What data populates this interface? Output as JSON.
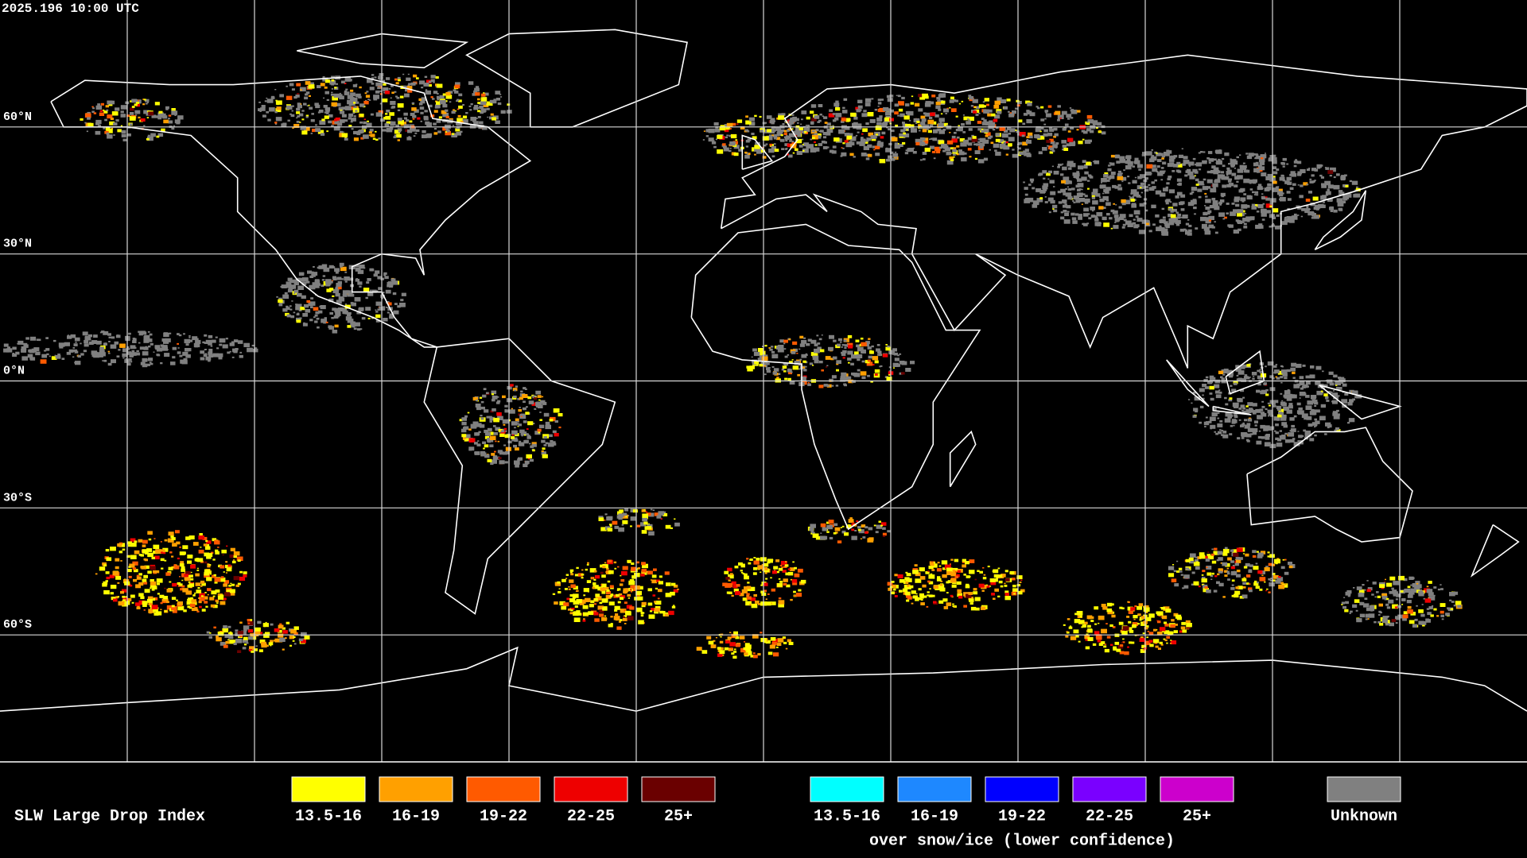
{
  "header": {
    "timestamp": "2025.196 10:00 UTC"
  },
  "map": {
    "latitude_labels": [
      "60°N",
      "30°N",
      "0°N",
      "30°S",
      "60°S"
    ]
  },
  "legend": {
    "title": "SLW Large Drop Index",
    "groups": [
      {
        "items": [
          {
            "label": "13.5-16",
            "color": "#ffff00"
          },
          {
            "label": "16-19",
            "color": "#ffa000"
          },
          {
            "label": "19-22",
            "color": "#ff5a00"
          },
          {
            "label": "22-25",
            "color": "#ee0000"
          },
          {
            "label": "25+",
            "color": "#6a0000"
          }
        ]
      },
      {
        "items": [
          {
            "label": "13.5-16",
            "color": "#00ffff"
          },
          {
            "label": "16-19",
            "color": "#1e88ff"
          },
          {
            "label": "19-22",
            "color": "#0000ff"
          },
          {
            "label": "22-25",
            "color": "#7a00ff"
          },
          {
            "label": "25+",
            "color": "#cc00cc"
          }
        ],
        "caption": "over snow/ice (lower confidence)"
      },
      {
        "items": [
          {
            "label": "Unknown",
            "color": "#808080"
          }
        ]
      }
    ]
  }
}
